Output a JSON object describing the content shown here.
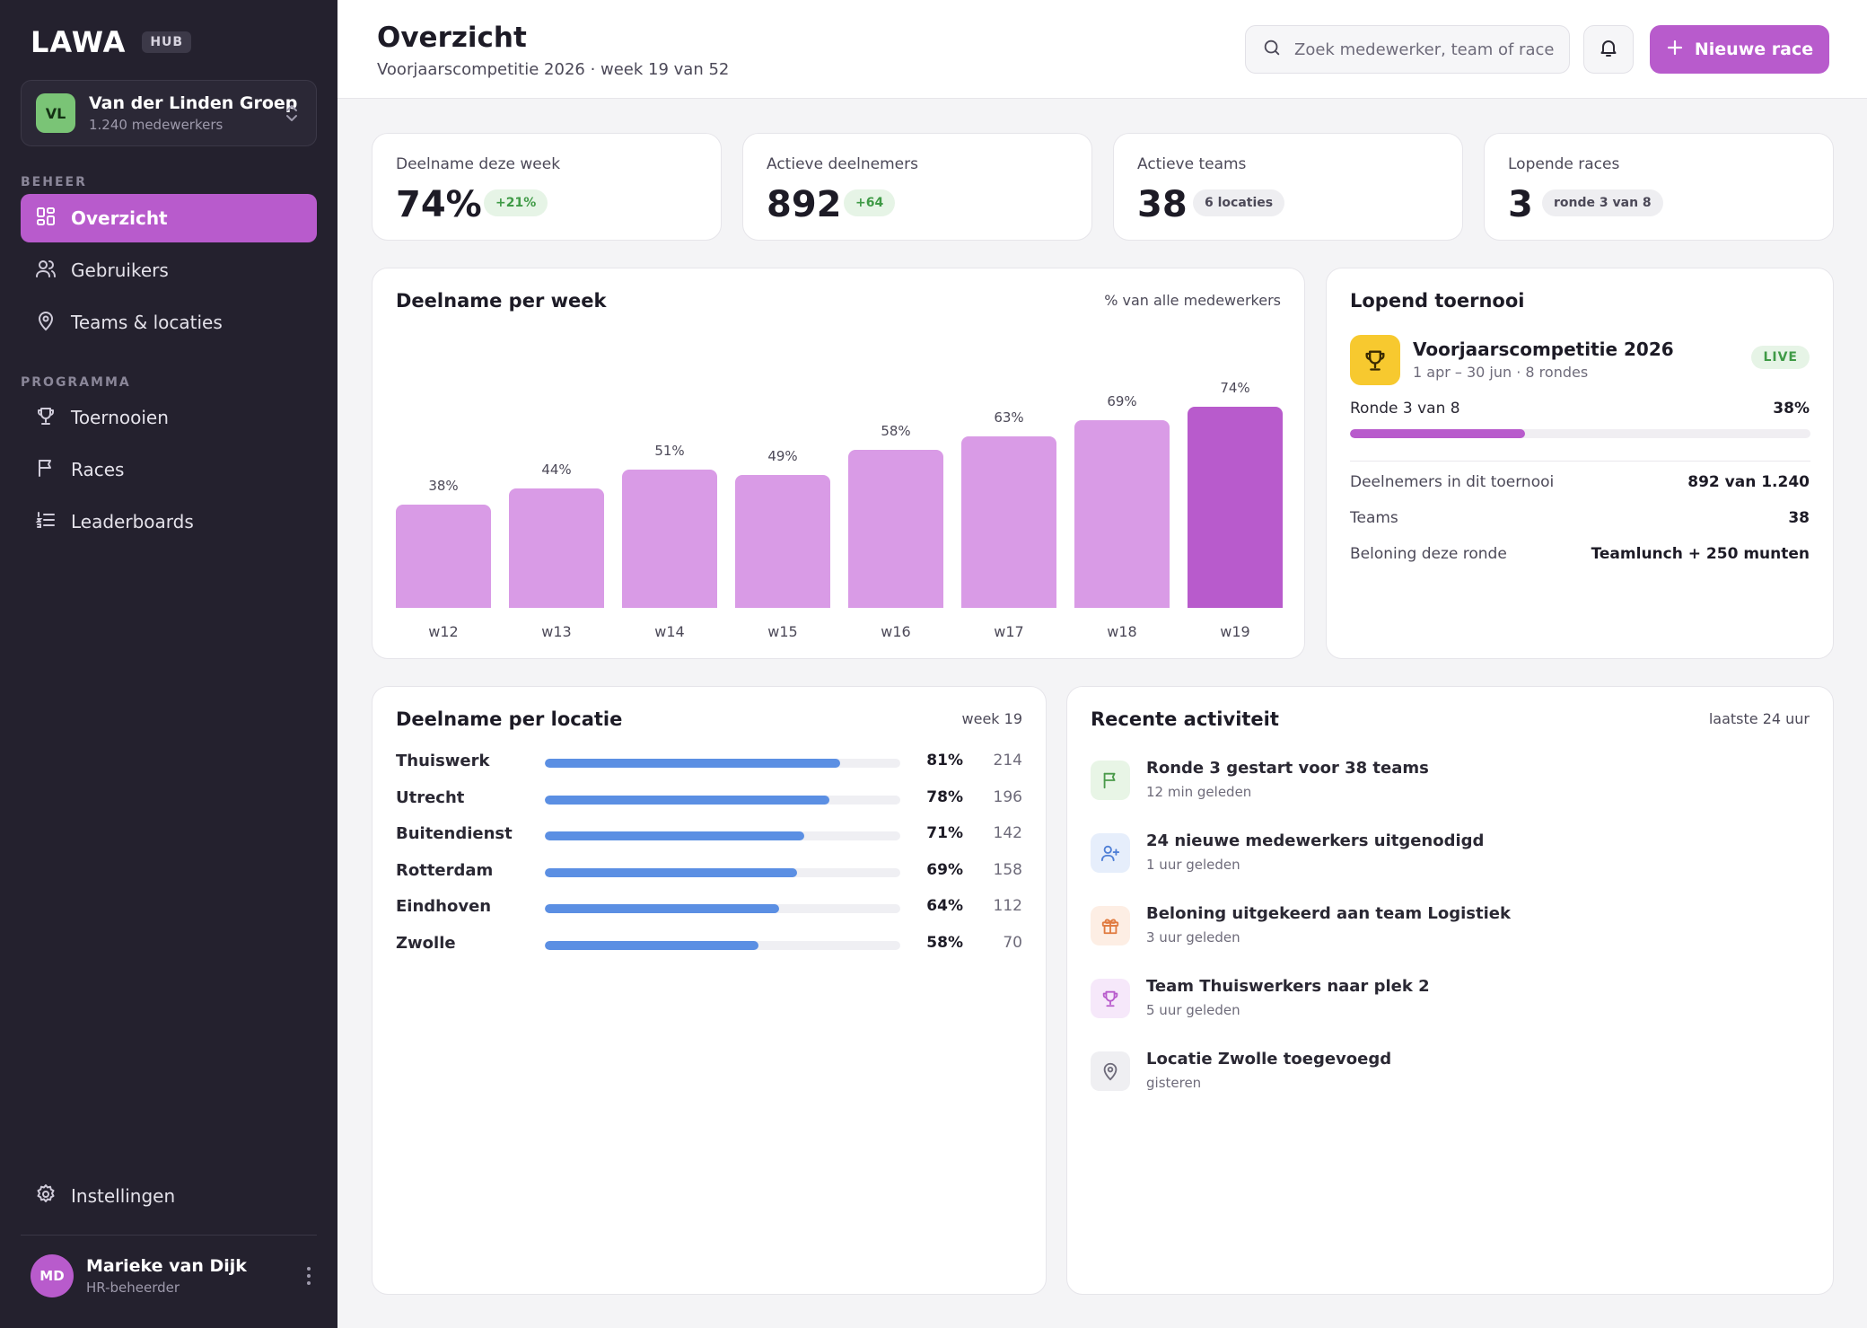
{
  "brand": {
    "logo": "LAWA",
    "badge": "HUB",
    "accent": "#b85bcc"
  },
  "org": {
    "initials": "VL",
    "name": "Van der Linden Groep",
    "employees": "1.240 medewerkers"
  },
  "nav": {
    "section_manage": "BEHEER",
    "section_program": "PROGRAMMA",
    "items": [
      {
        "label": "Overzicht",
        "icon": "grid-icon",
        "active": true
      },
      {
        "label": "Gebruikers",
        "icon": "users-icon"
      },
      {
        "label": "Teams & locaties",
        "icon": "map-pin-icon"
      },
      {
        "label": "Toernooien",
        "icon": "trophy-icon"
      },
      {
        "label": "Races",
        "icon": "flag-icon"
      },
      {
        "label": "Leaderboards",
        "icon": "list-ordered-icon"
      }
    ],
    "settings": "Instellingen"
  },
  "user": {
    "initials": "MD",
    "name": "Marieke van Dijk",
    "role": "HR-beheerder"
  },
  "header": {
    "title": "Overzicht",
    "subtitle": "Voorjaarscompetitie 2026 · week 19 van 52",
    "search_placeholder": "Zoek medewerker, team of race",
    "new_race": "Nieuwe race"
  },
  "stats": [
    {
      "label": "Deelname deze week",
      "value": "74%",
      "badge": "+21%",
      "badge_style": "green"
    },
    {
      "label": "Actieve deelnemers",
      "value": "892",
      "badge": "+64",
      "badge_style": "green"
    },
    {
      "label": "Actieve teams",
      "value": "38",
      "badge": "6 locaties",
      "badge_style": "grey"
    },
    {
      "label": "Lopende races",
      "value": "3",
      "badge": "ronde 3 van 8",
      "badge_style": "grey"
    }
  ],
  "chart": {
    "title": "Deelname per week",
    "meta": "% van alle medewerkers"
  },
  "chart_data": {
    "type": "bar",
    "categories": [
      "w12",
      "w13",
      "w14",
      "w15",
      "w16",
      "w17",
      "w18",
      "w19"
    ],
    "values": [
      38,
      44,
      51,
      49,
      58,
      63,
      69,
      74
    ],
    "value_labels": [
      "38%",
      "44%",
      "51%",
      "49%",
      "58%",
      "63%",
      "69%",
      "74%"
    ],
    "highlight": "w19",
    "colors": {
      "bar": "#d99be6",
      "highlight": "#b85bcc"
    },
    "grid": false
  },
  "tournament": {
    "title": "Lopend toernooi",
    "name": "Voorjaarscompetitie 2026",
    "dates": "1 apr – 30 jun · 8 rondes",
    "status": "LIVE",
    "round_label": "Ronde 3 van 8",
    "progress_text": "38%",
    "progress": 0.38,
    "rows": [
      {
        "key": "Deelnemers in dit toernooi",
        "value": "892 van 1.240"
      },
      {
        "key": "Teams",
        "value": "38"
      },
      {
        "key": "Beloning deze ronde",
        "value": "Teamlunch + 250 munten"
      }
    ]
  },
  "locations": {
    "title": "Deelname per locatie",
    "meta": "week 19",
    "items": [
      {
        "name": "Thuiswerk",
        "pct": "81%",
        "fill": 0.83,
        "count": "214"
      },
      {
        "name": "Utrecht",
        "pct": "78%",
        "fill": 0.8,
        "count": "196"
      },
      {
        "name": "Buitendienst",
        "pct": "71%",
        "fill": 0.73,
        "count": "142"
      },
      {
        "name": "Rotterdam",
        "pct": "69%",
        "fill": 0.71,
        "count": "158"
      },
      {
        "name": "Eindhoven",
        "pct": "64%",
        "fill": 0.66,
        "count": "112"
      },
      {
        "name": "Zwolle",
        "pct": "58%",
        "fill": 0.6,
        "count": "70"
      }
    ]
  },
  "activity": {
    "title": "Recente activiteit",
    "meta": "laatste 24 uur",
    "items": [
      {
        "title": "Ronde 3 gestart voor 38 teams",
        "time": "12 min geleden",
        "icon": "flag-icon",
        "bg": "#e8f5e6",
        "fg": "#4a9a4a"
      },
      {
        "title": "24 nieuwe medewerkers uitgenodigd",
        "time": "1 uur geleden",
        "icon": "user-plus-icon",
        "bg": "#e6eefb",
        "fg": "#4f7fd6"
      },
      {
        "title": "Beloning uitgekeerd aan team Logistiek",
        "time": "3 uur geleden",
        "icon": "gift-icon",
        "bg": "#fdeee4",
        "fg": "#e07a3f"
      },
      {
        "title": "Team Thuiswerkers naar plek 2",
        "time": "5 uur geleden",
        "icon": "trophy-icon",
        "bg": "#f6e8fa",
        "fg": "#b85bcc"
      },
      {
        "title": "Locatie Zwolle toegevoegd",
        "time": "gisteren",
        "icon": "map-pin-icon",
        "bg": "#efeff2",
        "fg": "#6e6b7a"
      }
    ]
  }
}
